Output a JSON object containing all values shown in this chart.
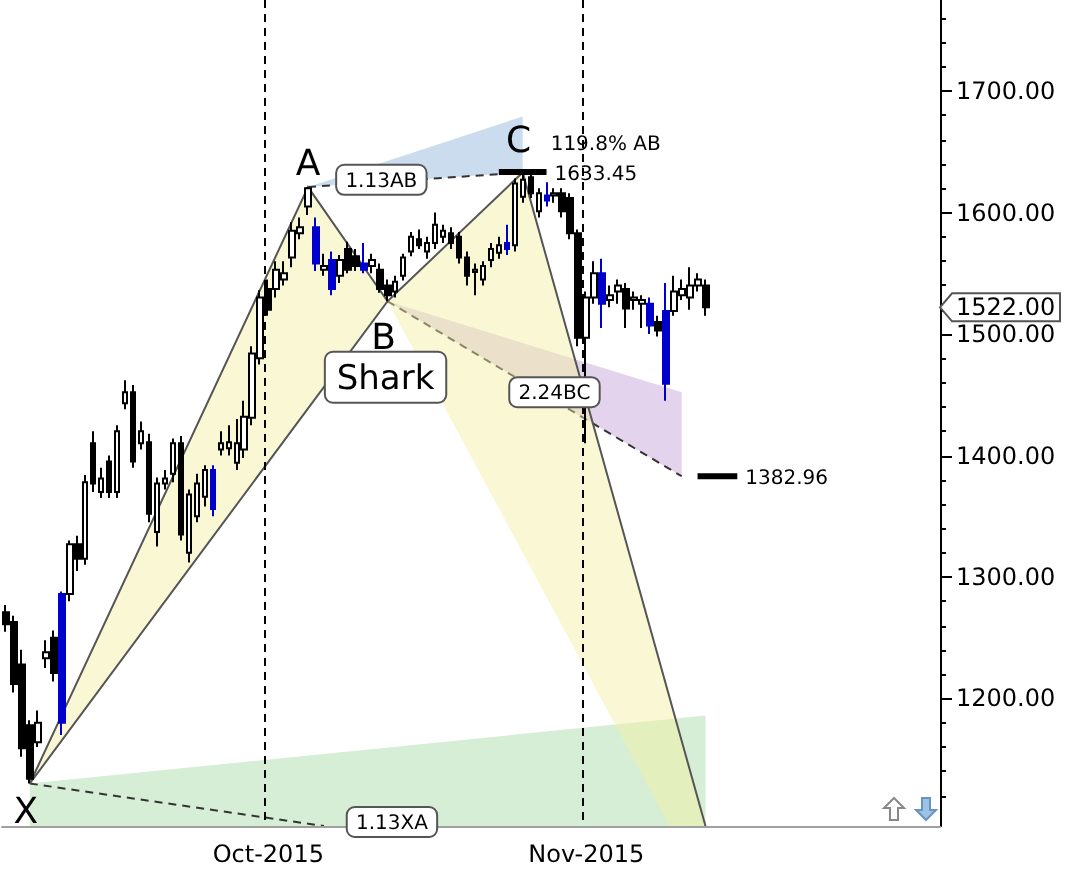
{
  "chart_data": {
    "type": "candlestick",
    "categories": [
      null,
      null,
      null,
      null,
      null,
      null,
      null,
      null,
      null,
      null,
      null,
      null,
      null,
      null,
      null,
      null,
      null,
      null,
      null,
      null,
      null,
      null,
      null,
      null,
      null,
      null,
      null,
      null,
      null,
      null,
      null,
      null,
      null,
      "Oct-2015",
      null,
      null,
      null,
      null,
      null,
      null,
      null,
      null,
      null,
      null,
      null,
      null,
      null,
      null,
      null,
      null,
      null,
      null,
      null,
      null,
      null,
      null,
      null,
      null,
      null,
      null,
      null,
      null,
      null,
      null,
      null,
      null,
      null,
      null,
      null,
      null,
      null,
      null,
      null,
      "Nov-2015",
      null,
      null,
      null,
      null,
      null,
      null,
      null,
      null,
      null,
      null,
      null,
      null,
      null,
      null,
      null,
      null,
      null,
      null,
      null,
      null,
      null,
      null,
      null,
      null,
      null,
      null,
      null,
      null,
      null,
      null,
      null,
      null,
      null,
      null,
      null,
      null,
      null,
      null,
      null,
      null,
      null,
      null,
      null,
      null
    ],
    "ohlc": [
      [
        1271,
        1277,
        1255,
        1261
      ],
      [
        1263,
        1268,
        1205,
        1212
      ],
      [
        1228,
        1240,
        1152,
        1159
      ],
      [
        1178,
        1182,
        1130,
        1134
      ],
      [
        1164,
        1190,
        1160,
        1180
      ],
      [
        1233,
        1248,
        1225,
        1238
      ],
      [
        1250,
        1256,
        1214,
        1221
      ],
      [
        1180,
        1288,
        1170,
        1286
      ],
      [
        1286,
        1330,
        1280,
        1327
      ],
      [
        1327,
        1334,
        1305,
        1315
      ],
      [
        1315,
        1384,
        1310,
        1378
      ],
      [
        1410,
        1420,
        1370,
        1377
      ],
      [
        1370,
        1390,
        1365,
        1381
      ],
      [
        1395,
        1400,
        1365,
        1370
      ],
      [
        1370,
        1425,
        1365,
        1420
      ],
      [
        1443,
        1462,
        1438,
        1452
      ],
      [
        1452,
        1458,
        1390,
        1395
      ],
      [
        1410,
        1428,
        1405,
        1420
      ],
      [
        1411,
        1418,
        1345,
        1352
      ],
      [
        1337,
        1382,
        1325,
        1377
      ],
      [
        1377,
        1388,
        1372,
        1381
      ],
      [
        1385,
        1414,
        1378,
        1410
      ],
      [
        1410,
        1416,
        1330,
        1335
      ],
      [
        1320,
        1372,
        1312,
        1368
      ],
      [
        1350,
        1385,
        1345,
        1377
      ],
      [
        1366,
        1392,
        1358,
        1388
      ],
      [
        1356,
        1392,
        1350,
        1388
      ],
      [
        1405,
        1420,
        1400,
        1410
      ],
      [
        1406,
        1425,
        1400,
        1411
      ],
      [
        1394,
        1430,
        1388,
        1410
      ],
      [
        1405,
        1445,
        1398,
        1432
      ],
      [
        1431,
        1490,
        1425,
        1484
      ],
      [
        1480,
        1536,
        1475,
        1530
      ],
      [
        1537,
        1545,
        1515,
        1520
      ],
      [
        1537,
        1560,
        1530,
        1553
      ],
      [
        1545,
        1560,
        1540,
        1550
      ],
      [
        1563,
        1592,
        1555,
        1585
      ],
      [
        1583,
        1596,
        1578,
        1588
      ],
      [
        1605,
        1621,
        1598,
        1620
      ],
      [
        1588,
        1596,
        1552,
        1558
      ],
      [
        1553,
        1566,
        1548,
        1556
      ],
      [
        1561,
        1568,
        1532,
        1537
      ],
      [
        1548,
        1565,
        1542,
        1561
      ],
      [
        1570,
        1576,
        1550,
        1553
      ],
      [
        1564,
        1570,
        1552,
        1556
      ],
      [
        1558,
        1575,
        1550,
        1553
      ],
      [
        1556,
        1566,
        1550,
        1561
      ],
      [
        1553,
        1558,
        1534,
        1537
      ],
      [
        1540,
        1545,
        1527,
        1532
      ],
      [
        1535,
        1548,
        1530,
        1543
      ],
      [
        1548,
        1566,
        1544,
        1563
      ],
      [
        1568,
        1584,
        1564,
        1580
      ],
      [
        1578,
        1586,
        1570,
        1573
      ],
      [
        1568,
        1580,
        1562,
        1575
      ],
      [
        1575,
        1600,
        1570,
        1590
      ],
      [
        1580,
        1590,
        1575,
        1585
      ],
      [
        1583,
        1588,
        1570,
        1575
      ],
      [
        1580,
        1584,
        1558,
        1563
      ],
      [
        1563,
        1568,
        1540,
        1548
      ],
      [
        1551,
        1558,
        1532,
        1553
      ],
      [
        1545,
        1560,
        1540,
        1556
      ],
      [
        1561,
        1575,
        1555,
        1570
      ],
      [
        1567,
        1580,
        1562,
        1573
      ],
      [
        1570,
        1590,
        1565,
        1575
      ],
      [
        1573,
        1628,
        1568,
        1624
      ],
      [
        1613,
        1633,
        1608,
        1627
      ],
      [
        1629,
        1635,
        1612,
        1616
      ],
      [
        1601,
        1620,
        1596,
        1616
      ],
      [
        1610,
        1625,
        1605,
        1614
      ],
      [
        1614,
        1620,
        1608,
        1616
      ],
      [
        1616,
        1620,
        1596,
        1601
      ],
      [
        1612,
        1616,
        1578,
        1583
      ],
      [
        1583,
        1586,
        1490,
        1497
      ],
      [
        1497,
        1535,
        1410,
        1530
      ],
      [
        1530,
        1560,
        1525,
        1550
      ],
      [
        1550,
        1562,
        1505,
        1525
      ],
      [
        1528,
        1540,
        1522,
        1532
      ],
      [
        1535,
        1545,
        1525,
        1540
      ],
      [
        1537,
        1542,
        1505,
        1521
      ],
      [
        1528,
        1535,
        1520,
        1530
      ],
      [
        1525,
        1532,
        1505,
        1528
      ],
      [
        1525,
        1530,
        1500,
        1507
      ],
      [
        1510,
        1515,
        1498,
        1503
      ],
      [
        1519,
        1542,
        1445,
        1459
      ],
      [
        1519,
        1548,
        1515,
        1535
      ],
      [
        1532,
        1545,
        1528,
        1537
      ],
      [
        1530,
        1555,
        1520,
        1540
      ],
      [
        1540,
        1550,
        1535,
        1545
      ],
      [
        1540,
        1545,
        1515,
        1522
      ],
      null,
      null,
      null,
      null,
      null,
      null,
      null,
      null,
      null,
      null,
      null,
      null,
      null,
      null,
      null,
      null,
      null,
      null,
      null,
      null,
      null,
      null,
      null,
      null,
      null,
      null,
      null,
      null,
      null
    ],
    "colors": [
      "#000000",
      "#000000",
      "#000000",
      "#000000",
      "#ffffff",
      "#ffffff",
      "#000000",
      "#0000cc",
      "#ffffff",
      "#000000",
      "#ffffff",
      "#000000",
      "#ffffff",
      "#000000",
      "#ffffff",
      "#ffffff",
      "#000000",
      "#ffffff",
      "#000000",
      "#ffffff",
      "#ffffff",
      "#ffffff",
      "#000000",
      "#ffffff",
      "#ffffff",
      "#ffffff",
      "#0000cc",
      "#ffffff",
      "#ffffff",
      "#ffffff",
      "#ffffff",
      "#ffffff",
      "#ffffff",
      "#000000",
      "#ffffff",
      "#ffffff",
      "#ffffff",
      "#ffffff",
      "#ffffff",
      "#0000cc",
      "#ffffff",
      "#0000cc",
      "#ffffff",
      "#000000",
      "#000000",
      "#0000cc",
      "#ffffff",
      "#000000",
      "#000000",
      "#ffffff",
      "#ffffff",
      "#ffffff",
      "#000000",
      "#ffffff",
      "#ffffff",
      "#ffffff",
      "#000000",
      "#000000",
      "#000000",
      "#ffffff",
      "#ffffff",
      "#ffffff",
      "#ffffff",
      "#0000cc",
      "#ffffff",
      "#ffffff",
      "#000000",
      "#ffffff",
      "#0000cc",
      "#ffffff",
      "#000000",
      "#000000",
      "#000000",
      "#ffffff",
      "#ffffff",
      "#0000cc",
      "#ffffff",
      "#ffffff",
      "#000000",
      "#ffffff",
      "#ffffff",
      "#0000cc",
      "#000000",
      "#0000cc",
      "#ffffff",
      "#ffffff",
      "#ffffff",
      "#ffffff",
      "#000000",
      null,
      null,
      null,
      null,
      null,
      null,
      null,
      null,
      null,
      null,
      null,
      null,
      null,
      null,
      null,
      null,
      null,
      null,
      null,
      null,
      null,
      null,
      null,
      null,
      null,
      null,
      null,
      null,
      null
    ],
    "ylim": [
      1095,
      1775
    ],
    "yticks": [
      {
        "value": 1200,
        "label": "1200.00"
      },
      {
        "value": 1300,
        "label": "1300.00"
      },
      {
        "value": 1400,
        "label": "1400.00"
      },
      {
        "value": 1500,
        "label": "1500.00"
      },
      {
        "value": 1600,
        "label": "1600.00"
      },
      {
        "value": 1700,
        "label": "1700.00"
      }
    ],
    "grid": "x",
    "ref_lines": [
      {
        "axis": "y",
        "value": 1633.45,
        "label": "1633.45"
      },
      {
        "axis": "y",
        "value": 1382.96,
        "label": "1382.96"
      }
    ],
    "annotations": [
      {
        "text": "X",
        "y": 1130
      },
      {
        "text": "A",
        "y": 1621
      },
      {
        "text": "B",
        "y": 1527
      },
      {
        "text": "C",
        "y": 1633
      },
      "Shark",
      "1.13AB",
      "119.8% AB",
      "2.24BC",
      "1.13XA",
      "1522.00"
    ]
  }
}
